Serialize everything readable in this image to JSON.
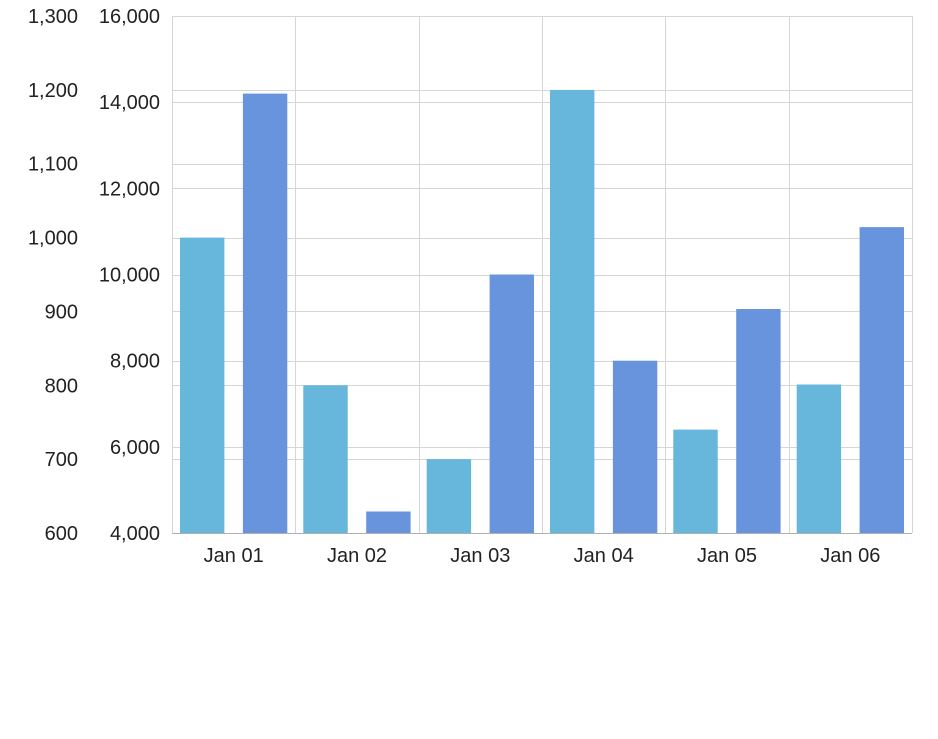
{
  "chart_data": {
    "type": "bar",
    "title": "",
    "xlabel": "",
    "categories": [
      "Jan 01",
      "Jan 02",
      "Jan 03",
      "Jan 04",
      "Jan 05",
      "Jan 06"
    ],
    "series": [
      {
        "axis": "left-outer",
        "color": "#67b7dc",
        "values": [
          1000,
          800,
          700,
          1200,
          740,
          801
        ]
      },
      {
        "axis": "left-inner",
        "color": "#6794dc",
        "values": [
          14200,
          4500,
          10000,
          8000,
          9200,
          11100
        ]
      }
    ],
    "y_axes": [
      {
        "id": "left-outer",
        "range": [
          600,
          1300
        ],
        "ticks": [
          600,
          700,
          800,
          900,
          1000,
          1100,
          1200,
          1300
        ],
        "tick_labels": [
          "600",
          "700",
          "800",
          "900",
          "1,000",
          "1,100",
          "1,200",
          "1,300"
        ]
      },
      {
        "id": "left-inner",
        "range": [
          4000,
          16000
        ],
        "ticks": [
          4000,
          6000,
          8000,
          10000,
          12000,
          14000,
          16000
        ],
        "tick_labels": [
          "4,000",
          "6,000",
          "8,000",
          "10,000",
          "12,000",
          "14,000",
          "16,000"
        ]
      }
    ],
    "grid": true,
    "legend": "none",
    "colors": {
      "grid": "#d6d6d6",
      "axis": "#b0b0b0",
      "text": "#222222"
    }
  }
}
